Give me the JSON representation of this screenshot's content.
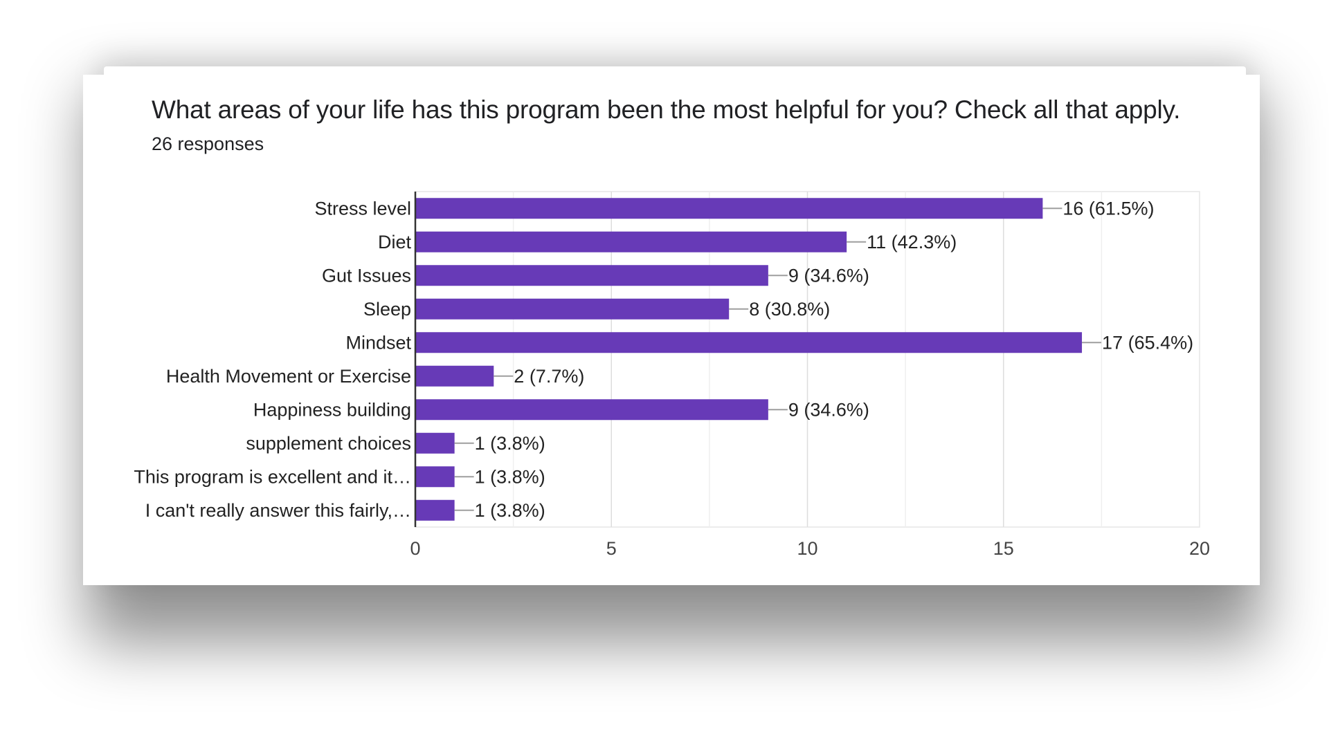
{
  "chart_data": {
    "type": "bar",
    "orientation": "horizontal",
    "title": "What areas of your life has this program been the most helpful for you? Check all that apply.",
    "subtitle": "26 responses",
    "categories": [
      "Stress level",
      "Diet",
      "Gut Issues",
      "Sleep",
      "Mindset",
      "Health Movement or Exercise",
      "Happiness building",
      "supplement choices",
      "This program is excellent and it…",
      "I can't really answer this fairly,…"
    ],
    "values": [
      16,
      11,
      9,
      8,
      17,
      2,
      9,
      1,
      1,
      1
    ],
    "value_labels": [
      "16 (61.5%)",
      "11 (42.3%)",
      "9 (34.6%)",
      "8 (30.8%)",
      "17 (65.4%)",
      "2 (7.7%)",
      "9 (34.6%)",
      "1 (3.8%)",
      "1 (3.8%)",
      "1 (3.8%)"
    ],
    "xlim": [
      0,
      20
    ],
    "x_ticks": [
      0,
      5,
      10,
      15,
      20
    ],
    "x_tick_labels": [
      "0",
      "5",
      "10",
      "15",
      "20"
    ],
    "grid": true,
    "bar_color": "#673ab7",
    "xlabel": "",
    "ylabel": ""
  }
}
